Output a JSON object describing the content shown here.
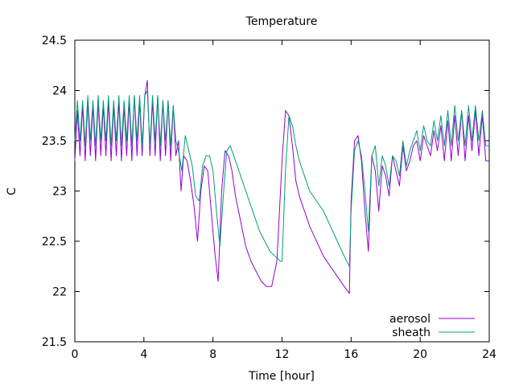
{
  "chart_data": {
    "type": "line",
    "title": "Temperature",
    "xlabel": "Time [hour]",
    "ylabel": "C",
    "xlim": [
      0,
      24
    ],
    "ylim": [
      21.5,
      24.5
    ],
    "grid": false,
    "legend_position": "bottom-right",
    "x_ticks": [
      0,
      4,
      8,
      12,
      16,
      20,
      24
    ],
    "x_tick_labels": [
      "0",
      "4",
      "8",
      "12",
      "16",
      "20",
      "24"
    ],
    "y_ticks": [
      21.5,
      22,
      22.5,
      23,
      23.5,
      24,
      24.5
    ],
    "y_tick_labels": [
      "21.5",
      "22",
      "22.5",
      "23",
      "23.5",
      "24",
      "24.5"
    ],
    "series": [
      {
        "name": "aerosol",
        "color": "#9400d3",
        "x": [
          0,
          0.15,
          0.3,
          0.45,
          0.6,
          0.75,
          0.9,
          1.05,
          1.2,
          1.35,
          1.5,
          1.65,
          1.8,
          1.95,
          2.1,
          2.25,
          2.4,
          2.55,
          2.7,
          2.85,
          3.0,
          3.15,
          3.3,
          3.45,
          3.6,
          3.75,
          3.9,
          4.05,
          4.2,
          4.35,
          4.5,
          4.65,
          4.8,
          4.95,
          5.1,
          5.25,
          5.4,
          5.55,
          5.7,
          5.85,
          6.0,
          6.15,
          6.3,
          6.5,
          6.7,
          6.9,
          7.1,
          7.3,
          7.5,
          7.7,
          7.9,
          8.1,
          8.3,
          8.5,
          8.7,
          8.9,
          9.1,
          9.3,
          9.6,
          9.9,
          10.2,
          10.5,
          10.8,
          11.1,
          11.4,
          11.7,
          12.0,
          12.2,
          12.4,
          12.6,
          12.8,
          13.0,
          13.3,
          13.6,
          14.0,
          14.4,
          14.8,
          15.2,
          15.6,
          15.9,
          16.0,
          16.2,
          16.4,
          16.6,
          16.8,
          17.0,
          17.2,
          17.4,
          17.6,
          17.8,
          18.0,
          18.2,
          18.4,
          18.6,
          18.8,
          19.0,
          19.2,
          19.4,
          19.6,
          19.8,
          20.0,
          20.2,
          20.4,
          20.6,
          20.8,
          21.0,
          21.2,
          21.4,
          21.6,
          21.8,
          22.0,
          22.2,
          22.4,
          22.6,
          22.8,
          23.0,
          23.2,
          23.4,
          23.6,
          23.8,
          24.0
        ],
        "y": [
          23.3,
          23.8,
          23.35,
          23.85,
          23.3,
          23.9,
          23.35,
          23.85,
          23.3,
          23.9,
          23.35,
          23.85,
          23.35,
          23.9,
          23.3,
          23.85,
          23.35,
          23.9,
          23.3,
          23.85,
          23.35,
          23.9,
          23.3,
          23.95,
          23.35,
          23.9,
          23.35,
          23.95,
          24.1,
          23.35,
          23.9,
          23.35,
          23.95,
          23.3,
          23.9,
          23.35,
          23.9,
          23.3,
          23.85,
          23.35,
          23.5,
          23.0,
          23.35,
          23.3,
          23.1,
          22.85,
          22.5,
          23.0,
          23.25,
          23.2,
          22.8,
          22.4,
          22.1,
          23.0,
          23.4,
          23.35,
          23.2,
          22.95,
          22.7,
          22.45,
          22.3,
          22.2,
          22.1,
          22.05,
          22.05,
          22.3,
          23.3,
          23.8,
          23.75,
          23.45,
          23.1,
          22.95,
          22.8,
          22.65,
          22.5,
          22.35,
          22.25,
          22.15,
          22.05,
          21.98,
          22.9,
          23.5,
          23.55,
          23.3,
          22.8,
          22.4,
          23.35,
          23.2,
          22.8,
          23.25,
          23.15,
          22.95,
          23.35,
          23.2,
          23.05,
          23.45,
          23.2,
          23.3,
          23.45,
          23.5,
          23.3,
          23.55,
          23.45,
          23.35,
          23.6,
          23.4,
          23.65,
          23.3,
          23.7,
          23.3,
          23.75,
          23.35,
          23.8,
          23.3,
          23.75,
          23.4,
          23.8,
          23.35,
          23.75,
          23.3,
          23.3
        ]
      },
      {
        "name": "sheath",
        "color": "#009e73",
        "x": [
          0,
          0.15,
          0.3,
          0.45,
          0.6,
          0.75,
          0.9,
          1.05,
          1.2,
          1.35,
          1.5,
          1.65,
          1.8,
          1.95,
          2.1,
          2.25,
          2.4,
          2.55,
          2.7,
          2.85,
          3.0,
          3.15,
          3.3,
          3.45,
          3.6,
          3.75,
          3.9,
          4.05,
          4.2,
          4.35,
          4.5,
          4.65,
          4.8,
          4.95,
          5.1,
          5.25,
          5.4,
          5.55,
          5.7,
          5.85,
          6.0,
          6.2,
          6.4,
          6.6,
          6.8,
          7.0,
          7.2,
          7.4,
          7.6,
          7.8,
          8.0,
          8.2,
          8.4,
          8.6,
          8.8,
          9.0,
          9.2,
          9.5,
          9.8,
          10.1,
          10.4,
          10.7,
          11.0,
          11.3,
          11.6,
          11.9,
          12.0,
          12.2,
          12.4,
          12.6,
          12.8,
          13.0,
          13.3,
          13.6,
          14.0,
          14.4,
          14.8,
          15.2,
          15.6,
          15.9,
          16.0,
          16.2,
          16.4,
          16.6,
          16.8,
          17.0,
          17.2,
          17.4,
          17.6,
          17.8,
          18.0,
          18.2,
          18.4,
          18.6,
          18.8,
          19.0,
          19.2,
          19.4,
          19.6,
          19.8,
          20.0,
          20.2,
          20.4,
          20.6,
          20.8,
          21.0,
          21.2,
          21.4,
          21.6,
          21.8,
          22.0,
          22.2,
          22.4,
          22.6,
          22.8,
          23.0,
          23.2,
          23.4,
          23.6,
          23.8,
          24.0
        ],
        "y": [
          23.5,
          23.9,
          23.5,
          23.9,
          23.45,
          23.95,
          23.5,
          23.9,
          23.45,
          23.95,
          23.5,
          23.9,
          23.5,
          23.95,
          23.45,
          23.9,
          23.5,
          23.95,
          23.45,
          23.9,
          23.5,
          23.95,
          23.45,
          23.95,
          23.5,
          23.95,
          23.45,
          23.95,
          24.0,
          23.45,
          23.95,
          23.5,
          23.95,
          23.45,
          23.9,
          23.5,
          23.9,
          23.45,
          23.85,
          23.5,
          23.4,
          23.2,
          23.55,
          23.4,
          23.25,
          22.95,
          22.9,
          23.25,
          23.35,
          23.35,
          23.2,
          22.8,
          22.45,
          22.95,
          23.4,
          23.45,
          23.35,
          23.2,
          23.05,
          22.9,
          22.75,
          22.6,
          22.5,
          22.4,
          22.35,
          22.3,
          22.3,
          23.2,
          23.75,
          23.65,
          23.45,
          23.3,
          23.15,
          23.0,
          22.9,
          22.8,
          22.65,
          22.5,
          22.35,
          22.25,
          22.8,
          23.4,
          23.5,
          23.35,
          23.0,
          22.6,
          23.35,
          23.45,
          23.05,
          23.35,
          23.25,
          23.05,
          23.35,
          23.3,
          23.15,
          23.5,
          23.25,
          23.4,
          23.5,
          23.6,
          23.4,
          23.65,
          23.5,
          23.45,
          23.7,
          23.5,
          23.75,
          23.45,
          23.8,
          23.45,
          23.85,
          23.5,
          23.8,
          23.45,
          23.85,
          23.5,
          23.85,
          23.5,
          23.8,
          23.45,
          23.45
        ]
      }
    ]
  }
}
